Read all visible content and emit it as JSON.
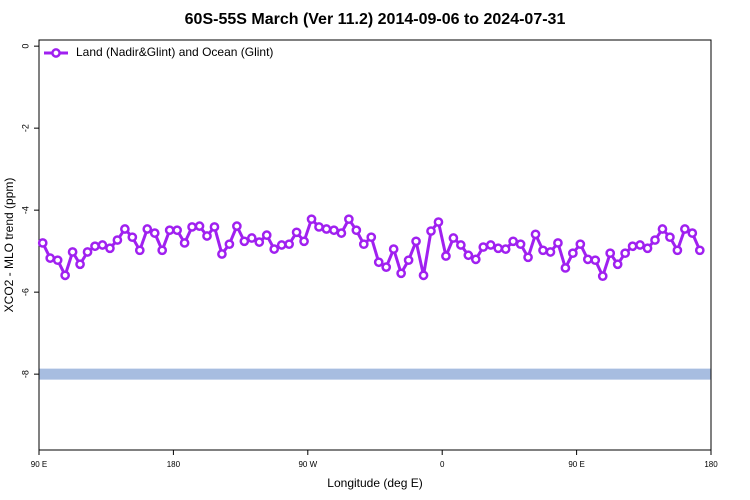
{
  "chart_data": {
    "type": "line",
    "title": "60S-55S March (Ver 11.2)   2014-09-06 to 2024-07-31",
    "xlabel": "Longitude (deg E)",
    "ylabel": "XCO2 - MLO trend (ppm)",
    "xlim": [
      90,
      540
    ],
    "ylim": [
      -9.85,
      0.15
    ],
    "xticks": [
      {
        "value": 90,
        "label": "90 E"
      },
      180,
      {
        "value": 270,
        "label": "90 W"
      },
      {
        "value": 360,
        "label": "0"
      },
      {
        "value": 450,
        "label": "90 E"
      },
      {
        "value": 540,
        "label": "180"
      }
    ],
    "yticks": [
      0,
      -2,
      -4,
      -6,
      -8
    ],
    "legend": "upper left",
    "reference_band": {
      "value": -8,
      "color": "#a7bde0"
    },
    "x": [
      92.5,
      97.5,
      102.5,
      107.5,
      112.5,
      117.5,
      122.5,
      127.5,
      132.5,
      137.5,
      142.5,
      147.5,
      152.5,
      157.5,
      162.5,
      167.5,
      172.5,
      177.5,
      182.5,
      187.5,
      192.5,
      197.5,
      202.5,
      207.5,
      212.5,
      217.5,
      222.5,
      227.5,
      232.5,
      237.5,
      242.5,
      247.5,
      252.5,
      257.5,
      262.5,
      267.5,
      272.5,
      277.5,
      282.5,
      287.5,
      292.5,
      297.5,
      302.5,
      307.5,
      312.5,
      317.5,
      322.5,
      327.5,
      332.5,
      337.5,
      342.5,
      347.5,
      352.5,
      357.5,
      362.5,
      367.5,
      372.5,
      377.5,
      382.5,
      387.5,
      392.5,
      397.5,
      402.5,
      407.5,
      412.5,
      417.5,
      422.5,
      427.5,
      432.5,
      437.5,
      442.5,
      447.5,
      452.5,
      457.5,
      462.5,
      467.5,
      472.5,
      477.5,
      482.5,
      487.5,
      492.5,
      497.5,
      502.5,
      507.5,
      512.5,
      517.5,
      522.5,
      527.5,
      532.5
    ],
    "series": [
      {
        "name": "Land (Nadir&Glint) and Ocean (Glint)",
        "color": "#a020f0",
        "values": [
          -4.8,
          -5.17,
          -5.22,
          -5.59,
          -5.02,
          -5.32,
          -5.02,
          -4.88,
          -4.85,
          -4.93,
          -4.73,
          -4.46,
          -4.66,
          -4.98,
          -4.46,
          -4.56,
          -4.98,
          -4.49,
          -4.49,
          -4.8,
          -4.41,
          -4.39,
          -4.63,
          -4.41,
          -5.07,
          -4.83,
          -4.39,
          -4.76,
          -4.68,
          -4.78,
          -4.61,
          -4.95,
          -4.85,
          -4.83,
          -4.54,
          -4.76,
          -4.22,
          -4.41,
          -4.46,
          -4.49,
          -4.56,
          -4.22,
          -4.49,
          -4.83,
          -4.66,
          -5.27,
          -5.39,
          -4.95,
          -5.54,
          -5.22,
          -4.76,
          -5.59,
          -4.51,
          -4.29,
          -5.12,
          -4.68,
          -4.85,
          -5.1,
          -5.2,
          -4.9,
          -4.85,
          -4.93,
          -4.95,
          -4.76,
          -4.83,
          -5.15,
          -4.59,
          -4.98,
          -5.02,
          -4.8,
          -5.41,
          -5.05,
          -4.83,
          -5.2,
          -5.22,
          -5.61,
          -5.05,
          -5.32,
          -5.05,
          -4.88,
          -4.85,
          -4.93,
          -4.73,
          -4.46,
          -4.66,
          -4.98,
          -4.46,
          -4.56,
          -4.98
        ]
      }
    ]
  }
}
